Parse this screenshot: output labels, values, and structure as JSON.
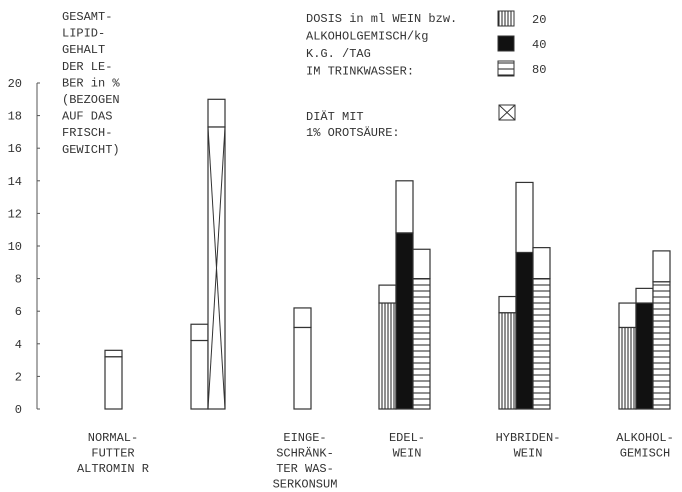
{
  "chart_data": {
    "type": "bar",
    "ylabel_lines": [
      "GESAMT-",
      "LIPID-",
      "GEHALT",
      "DER LE-",
      "BER in %",
      "(BEZOGEN",
      "AUF DAS",
      "FRISCH-",
      "GEWICHT)"
    ],
    "yticks": [
      0,
      2,
      4,
      6,
      8,
      10,
      12,
      14,
      16,
      18,
      20
    ],
    "ylim": [
      0,
      20
    ],
    "legend": {
      "title_lines": [
        "DOSIS in ml WEIN bzw.",
        "ALKOHOLGEMISCH/kg",
        "K.G. /TAG",
        "IM TRINKWASSER:"
      ],
      "entries": [
        {
          "label": "20",
          "pattern": "vertical-stripes"
        },
        {
          "label": "40",
          "pattern": "solid-black"
        },
        {
          "label": "80",
          "pattern": "horizontal-stripes"
        }
      ],
      "diet_lines": [
        "DIÄT MIT",
        "1% OROTSÄURE:"
      ],
      "diet_pattern": "crossed-box"
    },
    "groups": [
      {
        "label_lines": [
          "NORMAL-",
          "FUTTER",
          "ALTROMIN R"
        ],
        "bars": [
          {
            "pattern": "plain",
            "low": 3.2,
            "high": 3.6
          }
        ]
      },
      {
        "label_lines": [],
        "bars": [
          {
            "pattern": "plain",
            "low": 4.2,
            "high": 5.2
          },
          {
            "pattern": "crossed-box",
            "low": 17.3,
            "high": 19.0
          }
        ]
      },
      {
        "label_lines": [
          "EINGE-",
          "SCHRÄNK-",
          "TER WAS-",
          "SERKONSUM"
        ],
        "bars": [
          {
            "pattern": "plain",
            "low": 5.0,
            "high": 6.2
          }
        ]
      },
      {
        "label_lines": [
          "EDEL-",
          "WEIN"
        ],
        "bars": [
          {
            "pattern": "vertical-stripes",
            "low": 6.5,
            "high": 7.6
          },
          {
            "pattern": "solid-black",
            "low": 10.8,
            "high": 14.0
          },
          {
            "pattern": "horizontal-stripes",
            "low": 8.0,
            "high": 9.8
          }
        ]
      },
      {
        "label_lines": [
          "HYBRIDEN-",
          "WEIN"
        ],
        "bars": [
          {
            "pattern": "vertical-stripes",
            "low": 5.9,
            "high": 6.9
          },
          {
            "pattern": "solid-black",
            "low": 9.6,
            "high": 13.9
          },
          {
            "pattern": "horizontal-stripes",
            "low": 8.0,
            "high": 9.9
          }
        ]
      },
      {
        "label_lines": [
          "ALKOHOL-",
          "GEMISCH"
        ],
        "bars": [
          {
            "pattern": "vertical-stripes",
            "low": 5.0,
            "high": 6.5
          },
          {
            "pattern": "solid-black",
            "low": 6.5,
            "high": 7.4
          },
          {
            "pattern": "horizontal-stripes",
            "low": 7.8,
            "high": 9.7
          }
        ]
      }
    ]
  }
}
